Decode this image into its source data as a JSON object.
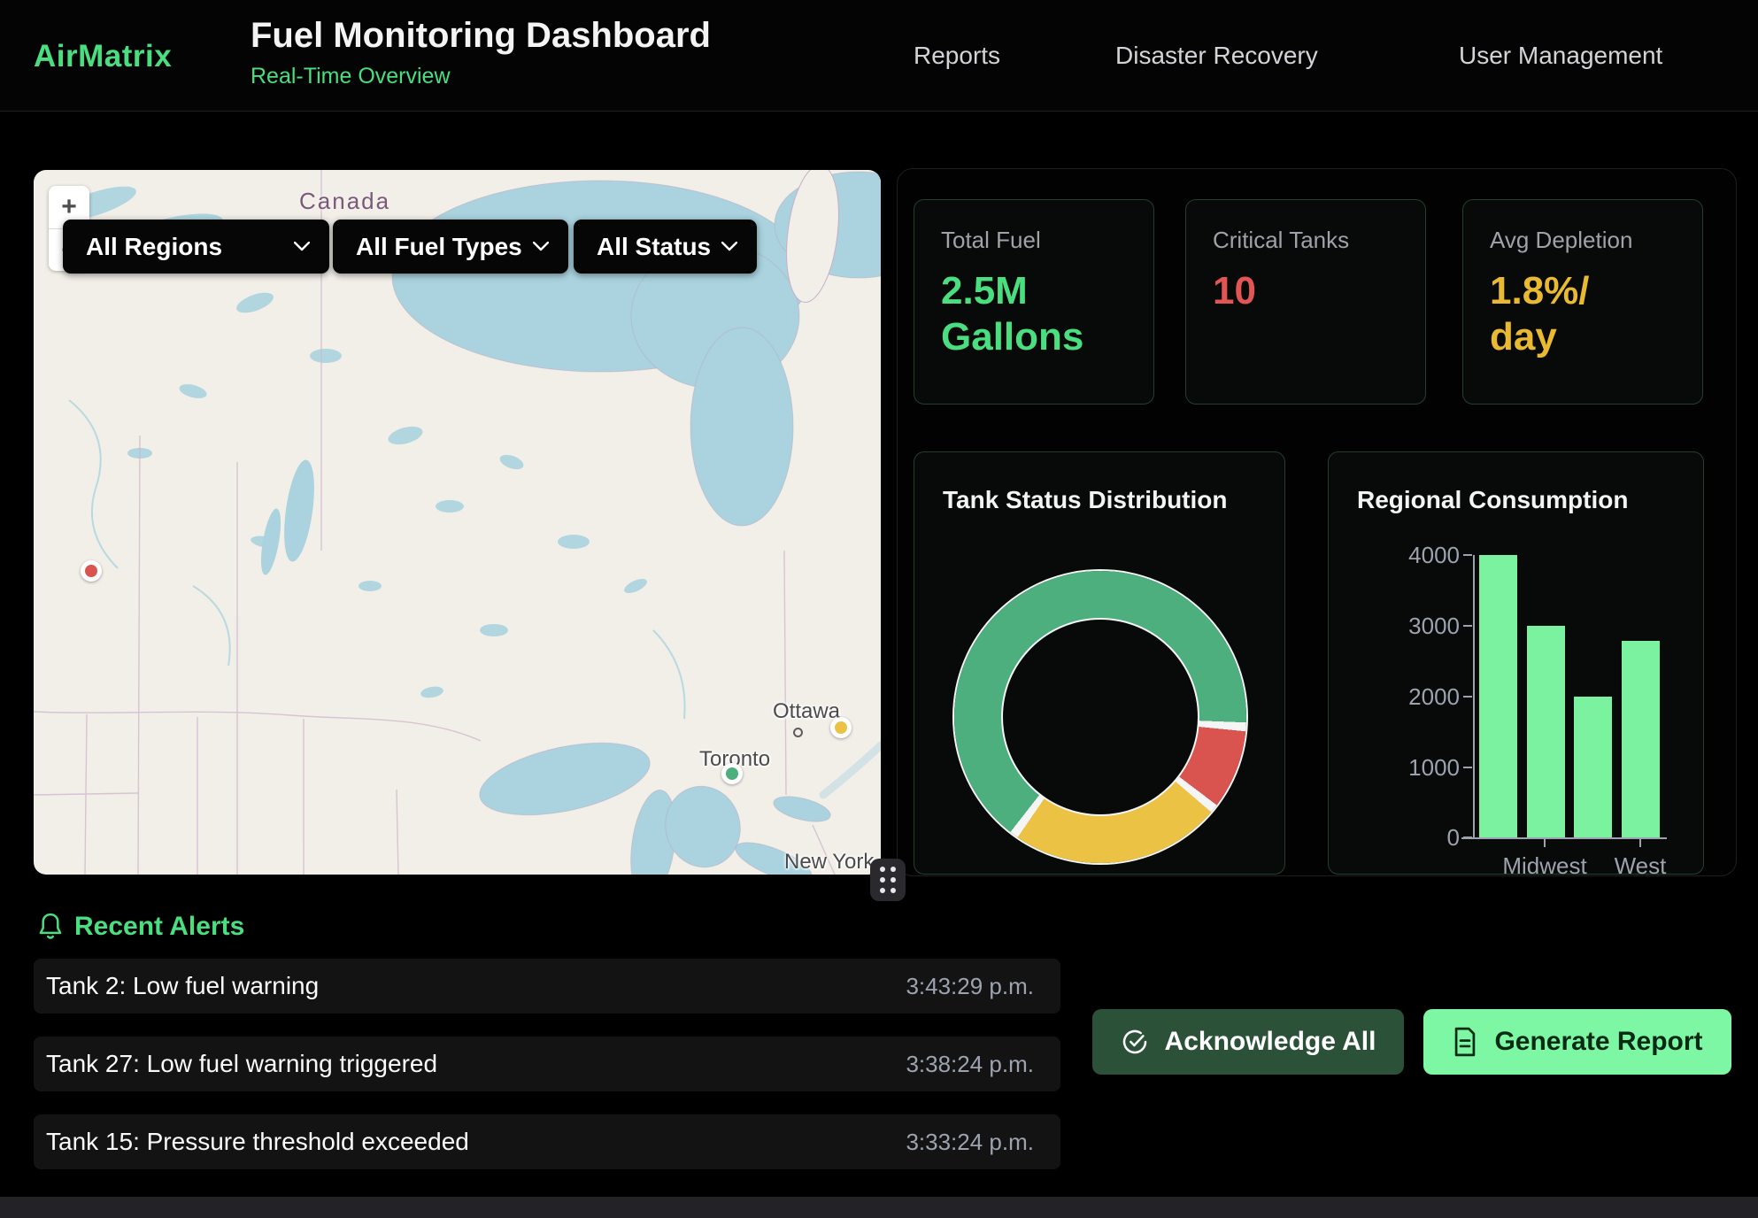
{
  "header": {
    "logo": "AirMatrix",
    "title": "Fuel Monitoring Dashboard",
    "subtitle": "Real-Time Overview",
    "nav": [
      {
        "label": "Reports"
      },
      {
        "label": "Disaster Recovery"
      },
      {
        "label": "User Management"
      }
    ]
  },
  "map": {
    "filters": [
      {
        "value": "All Regions"
      },
      {
        "value": "All Fuel Types"
      },
      {
        "value": "All Status"
      }
    ],
    "zoom_in_label": "+",
    "zoom_out_label": "−",
    "country_label": "Canada",
    "city_labels": [
      "Ottawa",
      "Toronto",
      "New York"
    ],
    "markers": [
      {
        "status": "critical",
        "color": "#d9534f"
      },
      {
        "status": "warning",
        "color": "#ecc244"
      },
      {
        "status": "normal",
        "color": "#4caf7d"
      }
    ],
    "land_color": "#f2efe9",
    "water_color": "#aad3df"
  },
  "stats": [
    {
      "label": "Total Fuel",
      "value": "2.5M Gallons",
      "value_lines": [
        "2.5M",
        "Gallons"
      ],
      "color": "#4ade80"
    },
    {
      "label": "Critical Tanks",
      "value": "10",
      "value_lines": [
        "10"
      ],
      "color": "#e25555"
    },
    {
      "label": "Avg Depletion",
      "value": "1.8%/day",
      "value_lines": [
        "1.8%/",
        "day"
      ],
      "color": "#e8b931"
    }
  ],
  "chart_data": [
    {
      "type": "pie",
      "donut": true,
      "title": "Tank Status Distribution",
      "labels": [
        "green",
        "red",
        "yellow"
      ],
      "values": [
        67,
        9,
        24
      ],
      "colors": [
        "#4caf7d",
        "#d9534f",
        "#ecc244"
      ],
      "start_angle_deg": 218,
      "legend": "none",
      "note": "segment sizes are estimated percentages of the ring"
    },
    {
      "type": "bar",
      "title": "Regional Consumption",
      "categories": [
        "",
        "Midwest",
        "",
        "West"
      ],
      "visible_x_tick_labels": [
        "Midwest",
        "West"
      ],
      "values": [
        4000,
        3000,
        2000,
        2780
      ],
      "bar_color": "#7bf2a0",
      "ylim": [
        0,
        4000
      ],
      "y_ticks": [
        0,
        1000,
        2000,
        3000,
        4000
      ],
      "grid": false,
      "axis_color": "#9ca3af"
    }
  ],
  "alerts": {
    "heading": "Recent Alerts",
    "items": [
      {
        "text": "Tank 2: Low fuel warning",
        "time": "3:43:29 p.m."
      },
      {
        "text": "Tank 27: Low fuel warning triggered",
        "time": "3:38:24 p.m."
      },
      {
        "text": "Tank 15: Pressure threshold exceeded",
        "time": "3:33:24 p.m."
      }
    ]
  },
  "actions": {
    "acknowledge_all": "Acknowledge All",
    "generate_report": "Generate Report"
  },
  "colors": {
    "accent_green": "#4ade80",
    "bright_green": "#7ef7a4",
    "dark_green_button": "#2b5138",
    "critical_red": "#e25555",
    "warning_amber": "#e8b931",
    "page_bg": "#000000",
    "card_bg": "#070a08",
    "card_border": "#24402d"
  }
}
